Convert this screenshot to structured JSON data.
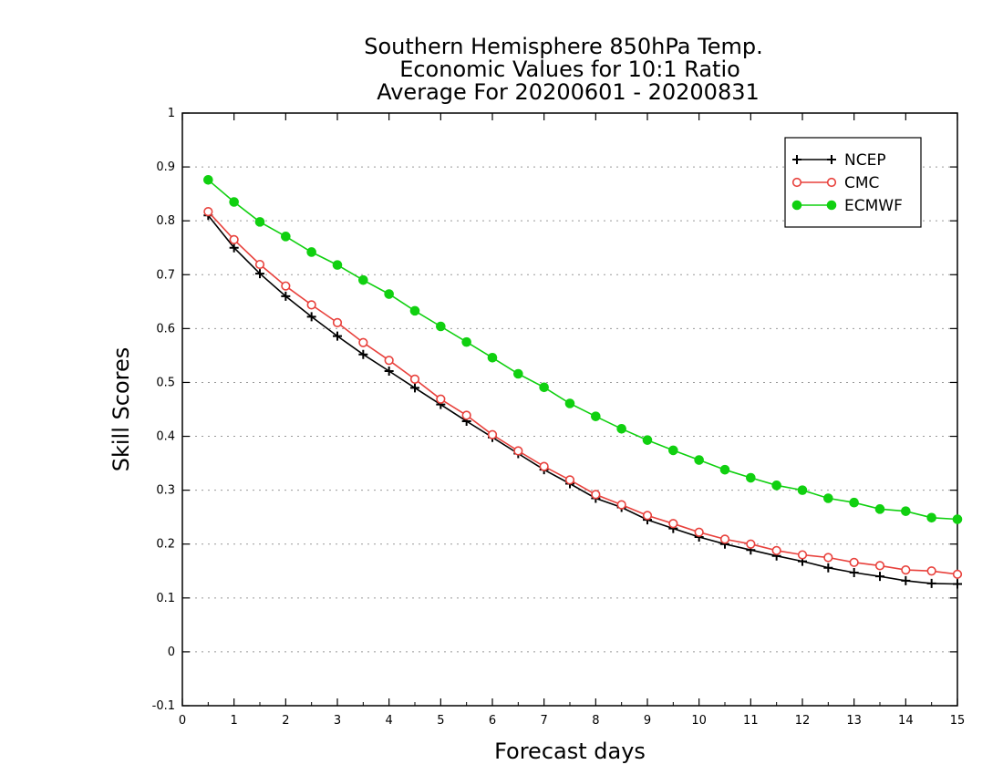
{
  "chart_data": {
    "type": "line",
    "title_lines": [
      "Southern Hemisphere 850hPa Temp.",
      "Economic Values for 10:1 Ratio",
      "Average For 20200601 - 20200831"
    ],
    "xlabel": "Forecast days",
    "ylabel": "Skill Scores",
    "xlim": [
      0,
      15
    ],
    "ylim": [
      -0.1,
      1
    ],
    "x_ticks": [
      0,
      1,
      2,
      3,
      4,
      5,
      6,
      7,
      8,
      9,
      10,
      11,
      12,
      13,
      14,
      15
    ],
    "x_tick_labels": [
      "0",
      "1",
      "2",
      "3",
      "4",
      "5",
      "6",
      "7",
      "8",
      "9",
      "10",
      "11",
      "12",
      "13",
      "14",
      "15"
    ],
    "y_ticks": [
      -0.1,
      0,
      0.1,
      0.2,
      0.3,
      0.4,
      0.5,
      0.6,
      0.7,
      0.8,
      0.9,
      1
    ],
    "y_tick_labels": [
      "-0.1",
      "0",
      "0.1",
      "0.2",
      "0.3",
      "0.4",
      "0.5",
      "0.6",
      "0.7",
      "0.8",
      "0.9",
      "1"
    ],
    "grid": "horizontal dotted",
    "legend_position": "top-right",
    "x": [
      0.5,
      1,
      1.5,
      2,
      2.5,
      3,
      3.5,
      4,
      4.5,
      5,
      5.5,
      6,
      6.5,
      7,
      7.5,
      8,
      8.5,
      9,
      9.5,
      10,
      10.5,
      11,
      11.5,
      12,
      12.5,
      13,
      13.5,
      14,
      14.5,
      15
    ],
    "series": [
      {
        "name": "NCEP",
        "color": "#000000",
        "marker": "plus",
        "values": [
          0.81,
          0.75,
          0.702,
          0.66,
          0.622,
          0.586,
          0.552,
          0.521,
          0.49,
          0.459,
          0.428,
          0.398,
          0.368,
          0.338,
          0.312,
          0.285,
          0.268,
          0.245,
          0.229,
          0.213,
          0.2,
          0.189,
          0.178,
          0.168,
          0.156,
          0.147,
          0.14,
          0.132,
          0.127,
          0.126
        ]
      },
      {
        "name": "CMC",
        "color": "#e8413c",
        "marker": "open-circle",
        "values": [
          0.817,
          0.765,
          0.719,
          0.679,
          0.644,
          0.611,
          0.574,
          0.541,
          0.506,
          0.469,
          0.439,
          0.403,
          0.373,
          0.344,
          0.319,
          0.292,
          0.273,
          0.253,
          0.238,
          0.222,
          0.209,
          0.2,
          0.188,
          0.18,
          0.175,
          0.166,
          0.16,
          0.152,
          0.15,
          0.144
        ]
      },
      {
        "name": "ECMWF",
        "color": "#10d010",
        "marker": "filled-circle",
        "values": [
          0.876,
          0.835,
          0.798,
          0.771,
          0.742,
          0.718,
          0.69,
          0.664,
          0.633,
          0.604,
          0.575,
          0.546,
          0.516,
          0.491,
          0.461,
          0.437,
          0.414,
          0.393,
          0.374,
          0.356,
          0.338,
          0.323,
          0.309,
          0.3,
          0.285,
          0.277,
          0.265,
          0.261,
          0.249,
          0.246
        ]
      }
    ]
  }
}
